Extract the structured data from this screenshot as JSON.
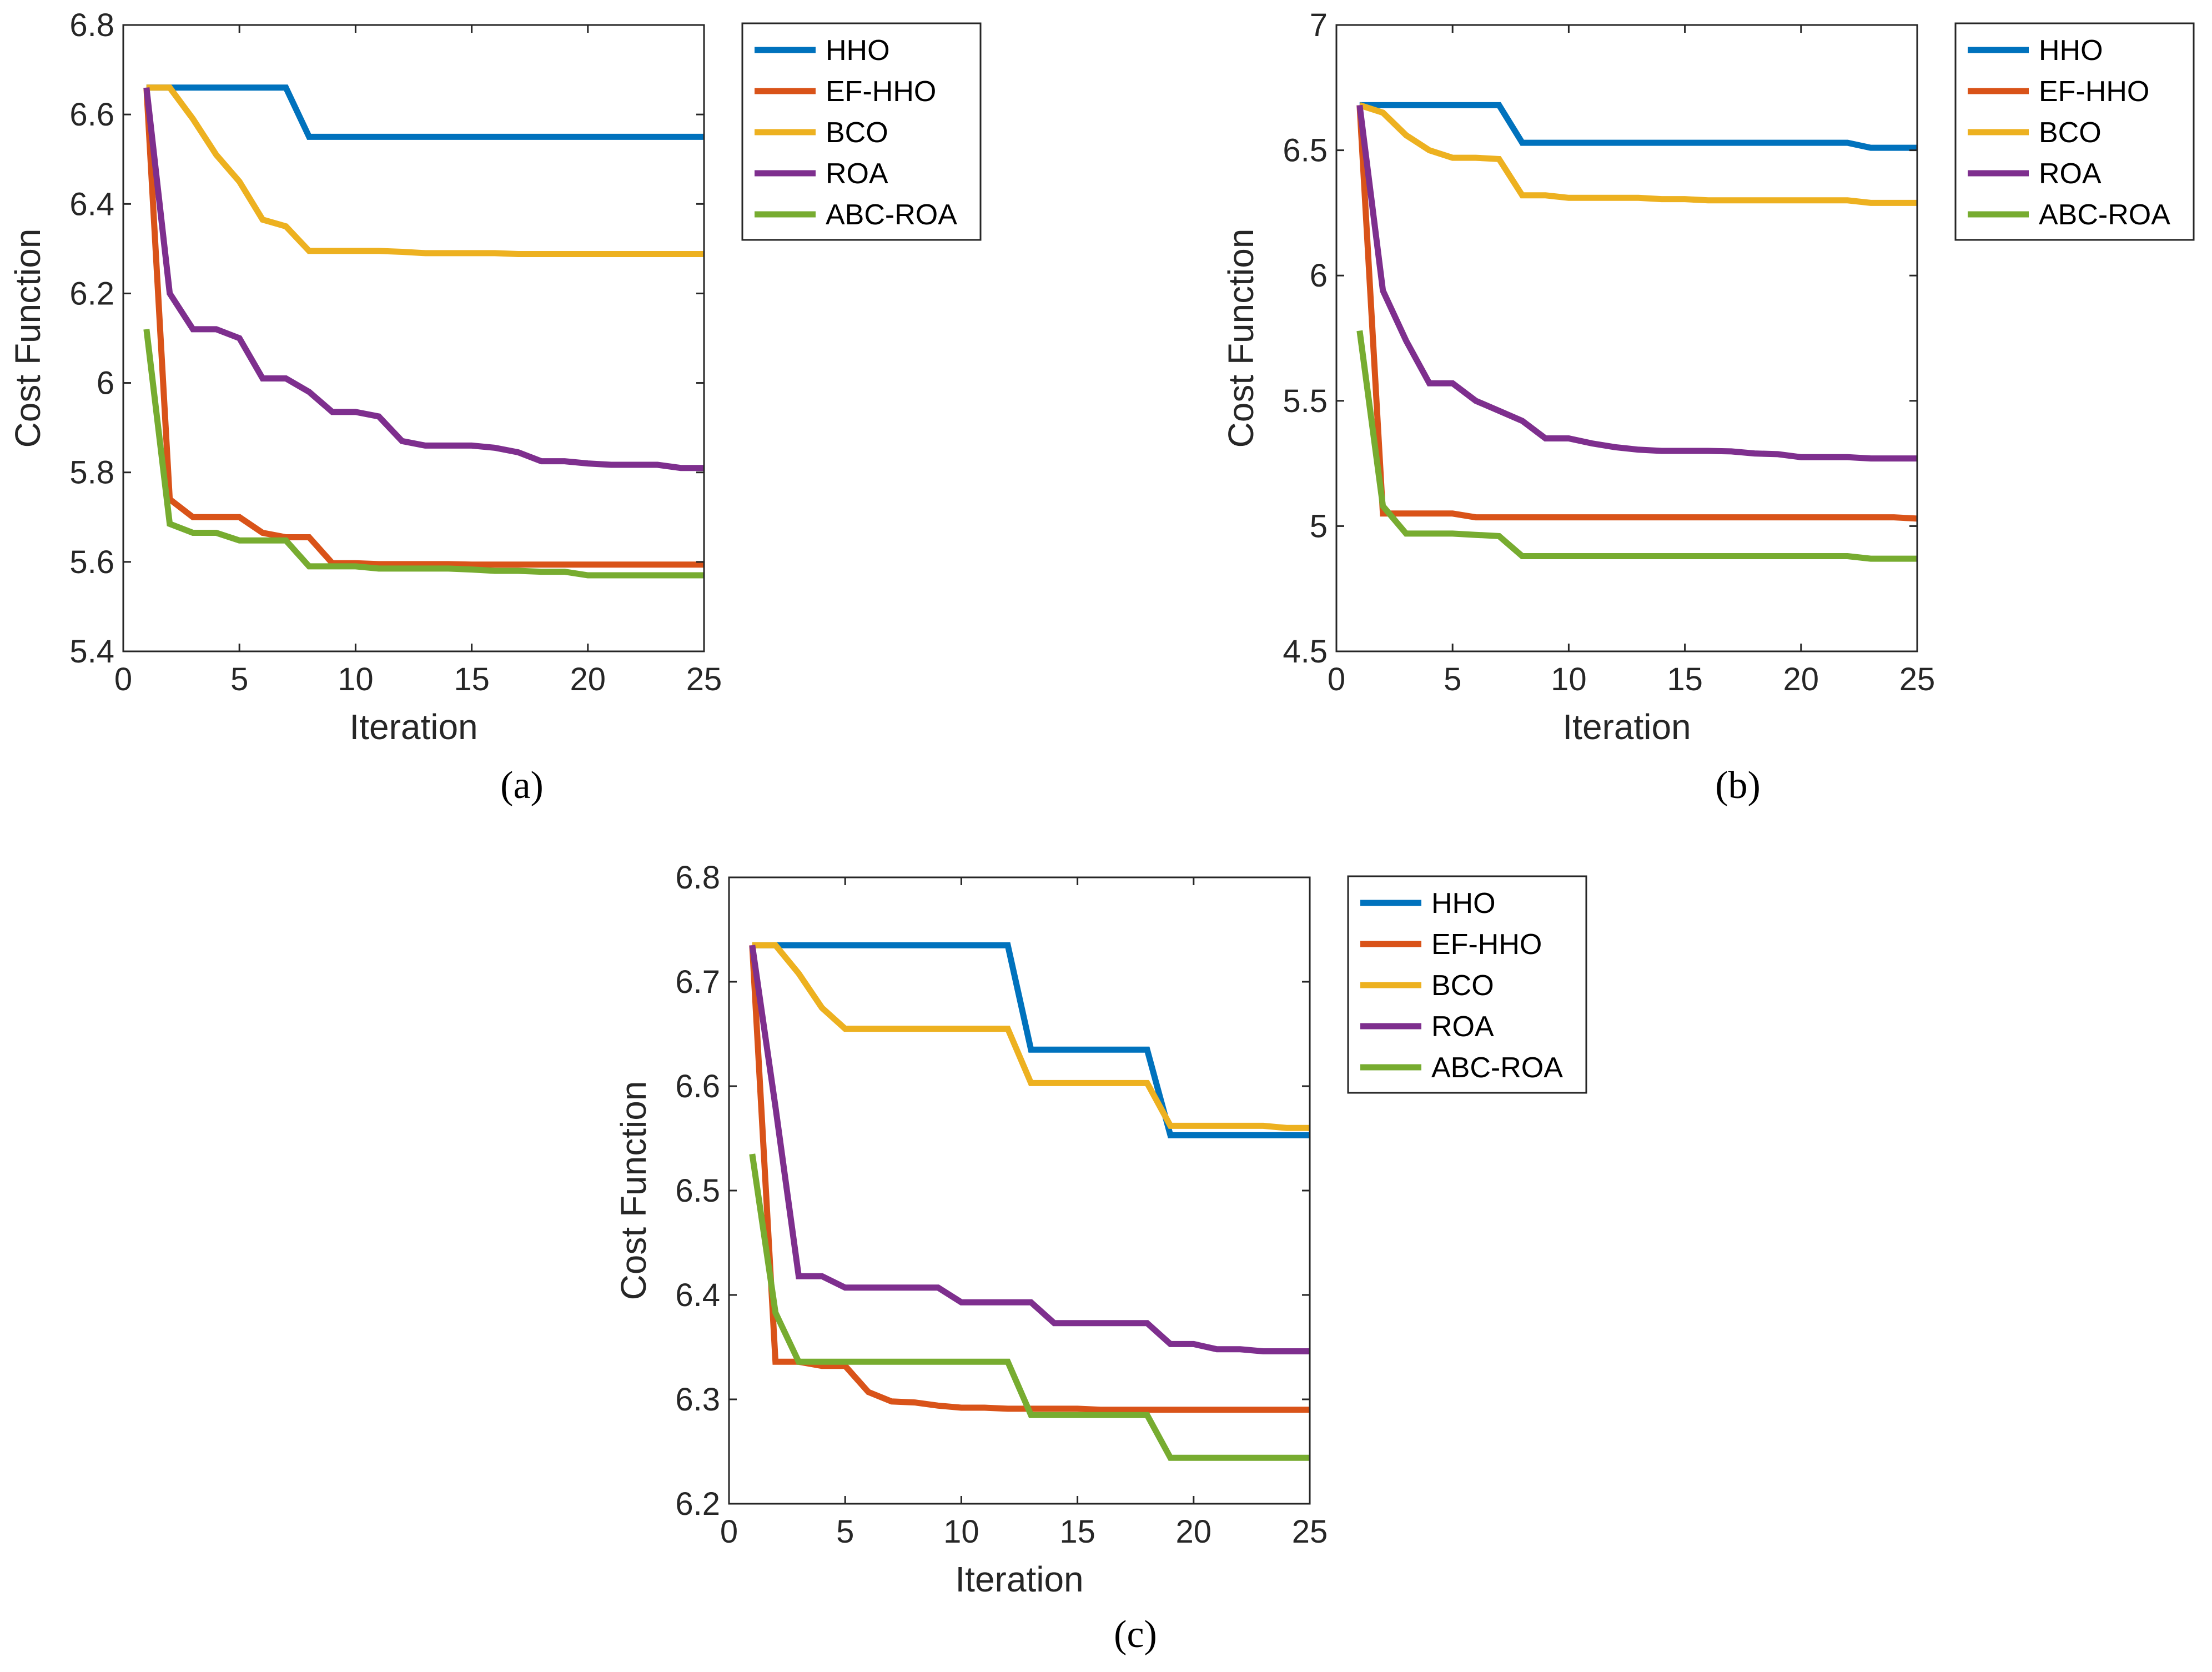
{
  "figure": {
    "panels": [
      {
        "id": "a",
        "caption": "(a)"
      },
      {
        "id": "b",
        "caption": "(b)"
      },
      {
        "id": "c",
        "caption": "(c)"
      }
    ]
  },
  "chart_data": [
    {
      "type": "line",
      "panel": "a",
      "title": "",
      "xlabel": "Iteration",
      "ylabel": "Cost Function",
      "xlim": [
        0,
        25
      ],
      "ylim": [
        5.4,
        6.8
      ],
      "xticks": [
        0,
        5,
        10,
        15,
        20,
        25
      ],
      "yticks": [
        5.4,
        5.6,
        5.8,
        6,
        6.2,
        6.4,
        6.6,
        6.8
      ],
      "ytick_labels": [
        "5.4",
        "5.6",
        "5.8",
        "6",
        "6.2",
        "6.4",
        "6.6",
        "6.8"
      ],
      "grid": false,
      "legend_position": "outside-top-right",
      "x": [
        1,
        2,
        3,
        4,
        5,
        6,
        7,
        8,
        9,
        10,
        11,
        12,
        13,
        14,
        15,
        16,
        17,
        18,
        19,
        20,
        21,
        22,
        23,
        24,
        25
      ],
      "series": [
        {
          "name": "HHO",
          "color": "#0072BD",
          "values": [
            6.66,
            6.66,
            6.66,
            6.66,
            6.66,
            6.66,
            6.66,
            6.55,
            6.55,
            6.55,
            6.55,
            6.55,
            6.55,
            6.55,
            6.55,
            6.55,
            6.55,
            6.55,
            6.55,
            6.55,
            6.55,
            6.55,
            6.55,
            6.55,
            6.55
          ]
        },
        {
          "name": "EF-HHO",
          "color": "#D95319",
          "values": [
            6.66,
            5.74,
            5.7,
            5.7,
            5.7,
            5.665,
            5.655,
            5.655,
            5.597,
            5.597,
            5.595,
            5.595,
            5.595,
            5.595,
            5.594,
            5.594,
            5.594,
            5.594,
            5.594,
            5.594,
            5.594,
            5.594,
            5.594,
            5.594,
            5.594
          ]
        },
        {
          "name": "BCO",
          "color": "#EDB120",
          "values": [
            6.66,
            6.66,
            6.59,
            6.51,
            6.45,
            6.365,
            6.35,
            6.295,
            6.295,
            6.295,
            6.295,
            6.293,
            6.29,
            6.29,
            6.29,
            6.29,
            6.288,
            6.288,
            6.288,
            6.288,
            6.288,
            6.288,
            6.288,
            6.288,
            6.288
          ]
        },
        {
          "name": "ROA",
          "color": "#7E2F8E",
          "values": [
            6.66,
            6.2,
            6.12,
            6.12,
            6.1,
            6.01,
            6.01,
            5.98,
            5.935,
            5.935,
            5.925,
            5.87,
            5.86,
            5.86,
            5.86,
            5.855,
            5.845,
            5.825,
            5.825,
            5.82,
            5.817,
            5.817,
            5.817,
            5.81,
            5.81
          ]
        },
        {
          "name": "ABC-ROA",
          "color": "#77AC30",
          "values": [
            6.12,
            5.685,
            5.665,
            5.665,
            5.648,
            5.648,
            5.648,
            5.59,
            5.59,
            5.59,
            5.585,
            5.585,
            5.585,
            5.585,
            5.583,
            5.58,
            5.58,
            5.578,
            5.578,
            5.57,
            5.57,
            5.57,
            5.57,
            5.57,
            5.57
          ]
        }
      ]
    },
    {
      "type": "line",
      "panel": "b",
      "title": "",
      "xlabel": "Iteration",
      "ylabel": "Cost Function",
      "xlim": [
        0,
        25
      ],
      "ylim": [
        4.5,
        7
      ],
      "xticks": [
        0,
        5,
        10,
        15,
        20,
        25
      ],
      "yticks": [
        4.5,
        5,
        5.5,
        6,
        6.5,
        7
      ],
      "ytick_labels": [
        "4.5",
        "5",
        "5.5",
        "6",
        "6.5",
        "7"
      ],
      "grid": false,
      "legend_position": "outside-top-right",
      "x": [
        1,
        2,
        3,
        4,
        5,
        6,
        7,
        8,
        9,
        10,
        11,
        12,
        13,
        14,
        15,
        16,
        17,
        18,
        19,
        20,
        21,
        22,
        23,
        24,
        25
      ],
      "series": [
        {
          "name": "HHO",
          "color": "#0072BD",
          "values": [
            6.68,
            6.68,
            6.68,
            6.68,
            6.68,
            6.68,
            6.68,
            6.53,
            6.53,
            6.53,
            6.53,
            6.53,
            6.53,
            6.53,
            6.53,
            6.53,
            6.53,
            6.53,
            6.53,
            6.53,
            6.53,
            6.53,
            6.51,
            6.51,
            6.51
          ]
        },
        {
          "name": "EF-HHO",
          "color": "#D95319",
          "values": [
            6.68,
            5.05,
            5.05,
            5.05,
            5.05,
            5.035,
            5.035,
            5.035,
            5.035,
            5.035,
            5.035,
            5.035,
            5.035,
            5.035,
            5.035,
            5.035,
            5.035,
            5.035,
            5.035,
            5.035,
            5.035,
            5.035,
            5.035,
            5.035,
            5.03
          ]
        },
        {
          "name": "BCO",
          "color": "#EDB120",
          "values": [
            6.68,
            6.65,
            6.56,
            6.5,
            6.47,
            6.47,
            6.465,
            6.32,
            6.32,
            6.31,
            6.31,
            6.31,
            6.31,
            6.305,
            6.305,
            6.3,
            6.3,
            6.3,
            6.3,
            6.3,
            6.3,
            6.3,
            6.29,
            6.29,
            6.29
          ]
        },
        {
          "name": "ROA",
          "color": "#7E2F8E",
          "values": [
            6.68,
            5.94,
            5.74,
            5.57,
            5.57,
            5.5,
            5.46,
            5.42,
            5.35,
            5.35,
            5.33,
            5.315,
            5.305,
            5.3,
            5.3,
            5.3,
            5.298,
            5.29,
            5.287,
            5.275,
            5.275,
            5.275,
            5.27,
            5.27,
            5.27
          ]
        },
        {
          "name": "ABC-ROA",
          "color": "#77AC30",
          "values": [
            5.78,
            5.08,
            4.97,
            4.97,
            4.97,
            4.965,
            4.96,
            4.88,
            4.88,
            4.88,
            4.88,
            4.88,
            4.88,
            4.88,
            4.88,
            4.88,
            4.88,
            4.88,
            4.88,
            4.88,
            4.88,
            4.88,
            4.87,
            4.87,
            4.87
          ]
        }
      ]
    },
    {
      "type": "line",
      "panel": "c",
      "title": "",
      "xlabel": "Iteration",
      "ylabel": "Cost Function",
      "xlim": [
        0,
        25
      ],
      "ylim": [
        6.2,
        6.8
      ],
      "xticks": [
        0,
        5,
        10,
        15,
        20,
        25
      ],
      "yticks": [
        6.2,
        6.3,
        6.4,
        6.5,
        6.6,
        6.7,
        6.8
      ],
      "ytick_labels": [
        "6.2",
        "6.3",
        "6.4",
        "6.5",
        "6.6",
        "6.7",
        "6.8"
      ],
      "grid": false,
      "legend_position": "outside-top-right",
      "x": [
        1,
        2,
        3,
        4,
        5,
        6,
        7,
        8,
        9,
        10,
        11,
        12,
        13,
        14,
        15,
        16,
        17,
        18,
        19,
        20,
        21,
        22,
        23,
        24,
        25
      ],
      "series": [
        {
          "name": "HHO",
          "color": "#0072BD",
          "values": [
            6.735,
            6.735,
            6.735,
            6.735,
            6.735,
            6.735,
            6.735,
            6.735,
            6.735,
            6.735,
            6.735,
            6.735,
            6.635,
            6.635,
            6.635,
            6.635,
            6.635,
            6.635,
            6.553,
            6.553,
            6.553,
            6.553,
            6.553,
            6.553,
            6.553
          ]
        },
        {
          "name": "EF-HHO",
          "color": "#D95319",
          "values": [
            6.735,
            6.336,
            6.336,
            6.332,
            6.332,
            6.307,
            6.298,
            6.297,
            6.294,
            6.292,
            6.292,
            6.291,
            6.291,
            6.291,
            6.291,
            6.29,
            6.29,
            6.29,
            6.29,
            6.29,
            6.29,
            6.29,
            6.29,
            6.29,
            6.29
          ]
        },
        {
          "name": "BCO",
          "color": "#EDB120",
          "values": [
            6.735,
            6.735,
            6.708,
            6.675,
            6.655,
            6.655,
            6.655,
            6.655,
            6.655,
            6.655,
            6.655,
            6.655,
            6.603,
            6.603,
            6.603,
            6.603,
            6.603,
            6.603,
            6.562,
            6.562,
            6.562,
            6.562,
            6.562,
            6.56,
            6.56
          ]
        },
        {
          "name": "ROA",
          "color": "#7E2F8E",
          "values": [
            6.735,
            6.58,
            6.418,
            6.418,
            6.407,
            6.407,
            6.407,
            6.407,
            6.407,
            6.393,
            6.393,
            6.393,
            6.393,
            6.373,
            6.373,
            6.373,
            6.373,
            6.373,
            6.353,
            6.353,
            6.348,
            6.348,
            6.346,
            6.346,
            6.346
          ]
        },
        {
          "name": "ABC-ROA",
          "color": "#77AC30",
          "values": [
            6.535,
            6.383,
            6.336,
            6.336,
            6.336,
            6.336,
            6.336,
            6.336,
            6.336,
            6.336,
            6.336,
            6.336,
            6.285,
            6.285,
            6.285,
            6.285,
            6.285,
            6.285,
            6.244,
            6.244,
            6.244,
            6.244,
            6.244,
            6.244,
            6.244
          ]
        }
      ]
    }
  ]
}
